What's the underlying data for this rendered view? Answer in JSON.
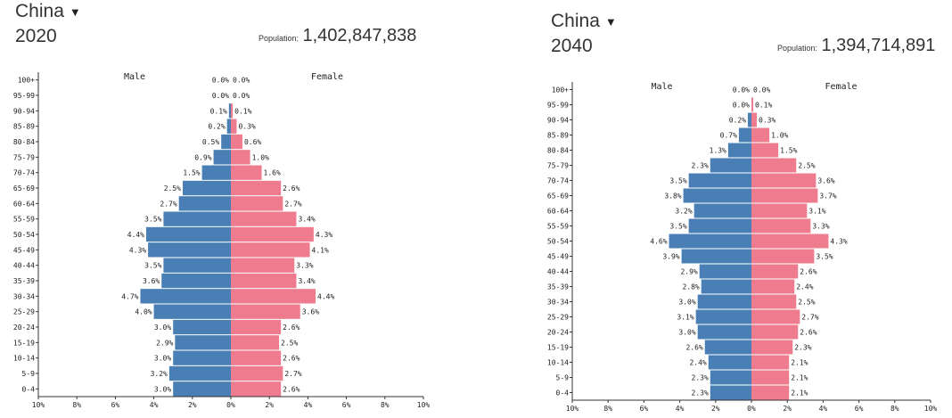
{
  "colors": {
    "male": "#4a7fb5",
    "female": "#ef7c8e"
  },
  "icons": {
    "dropdown": "caret-down-icon"
  },
  "charts": [
    {
      "country": "China",
      "year": "2020",
      "population_label": "Population:",
      "population": "1,402,847,838"
    },
    {
      "country": "China",
      "year": "2040",
      "population_label": "Population:",
      "population": "1,394,714,891"
    }
  ],
  "chart_data": [
    {
      "type": "bar",
      "orientation": "horizontal-pyramid",
      "categories": [
        "0-4",
        "5-9",
        "10-14",
        "15-19",
        "20-24",
        "25-29",
        "30-34",
        "35-39",
        "40-44",
        "45-49",
        "50-54",
        "55-59",
        "60-64",
        "65-69",
        "70-74",
        "75-79",
        "80-84",
        "85-89",
        "90-94",
        "95-99",
        "100+"
      ],
      "series": [
        {
          "name": "Male",
          "values": [
            3.0,
            3.2,
            3.0,
            2.9,
            3.0,
            4.0,
            4.7,
            3.6,
            3.5,
            4.3,
            4.4,
            3.5,
            2.7,
            2.5,
            1.5,
            0.9,
            0.5,
            0.2,
            0.1,
            0.0,
            0.0
          ],
          "labels": [
            "3.0%",
            "3.2%",
            "3.0%",
            "2.9%",
            "3.0%",
            "4.0%",
            "4.7%",
            "3.6%",
            "3.5%",
            "4.3%",
            "4.4%",
            "3.5%",
            "2.7%",
            "2.5%",
            "1.5%",
            "0.9%",
            "0.5%",
            "0.2%",
            "0.1%",
            "0.0%",
            "0.0%"
          ]
        },
        {
          "name": "Female",
          "values": [
            2.6,
            2.7,
            2.6,
            2.5,
            2.6,
            3.6,
            4.4,
            3.4,
            3.3,
            4.1,
            4.3,
            3.4,
            2.7,
            2.6,
            1.6,
            1.0,
            0.6,
            0.3,
            0.1,
            0.0,
            0.0
          ],
          "labels": [
            "2.6%",
            "2.7%",
            "2.6%",
            "2.5%",
            "2.6%",
            "3.6%",
            "4.4%",
            "3.4%",
            "3.3%",
            "4.1%",
            "4.3%",
            "3.4%",
            "2.7%",
            "2.6%",
            "1.6%",
            "1.0%",
            "0.6%",
            "0.3%",
            "0.1%",
            "0.0%",
            "0.0%"
          ]
        }
      ],
      "xlim": [
        -10,
        10
      ],
      "xticks": [
        "10%",
        "8%",
        "6%",
        "4%",
        "2%",
        "0%",
        "2%",
        "4%",
        "6%",
        "8%",
        "10%"
      ],
      "grid": false
    },
    {
      "type": "bar",
      "orientation": "horizontal-pyramid",
      "categories": [
        "0-4",
        "5-9",
        "10-14",
        "15-19",
        "20-24",
        "25-29",
        "30-34",
        "35-39",
        "40-44",
        "45-49",
        "50-54",
        "55-59",
        "60-64",
        "65-69",
        "70-74",
        "75-79",
        "80-84",
        "85-89",
        "90-94",
        "95-99",
        "100+"
      ],
      "series": [
        {
          "name": "Male",
          "values": [
            2.3,
            2.3,
            2.4,
            2.6,
            3.0,
            3.1,
            3.0,
            2.8,
            2.9,
            3.9,
            4.6,
            3.5,
            3.2,
            3.8,
            3.5,
            2.3,
            1.3,
            0.7,
            0.2,
            0.0,
            0.0
          ],
          "labels": [
            "2.3%",
            "2.3%",
            "2.4%",
            "2.6%",
            "3.0%",
            "3.1%",
            "3.0%",
            "2.8%",
            "2.9%",
            "3.9%",
            "4.6%",
            "3.5%",
            "3.2%",
            "3.8%",
            "3.5%",
            "2.3%",
            "1.3%",
            "0.7%",
            "0.2%",
            "0.0%",
            "0.0%"
          ]
        },
        {
          "name": "Female",
          "values": [
            2.1,
            2.1,
            2.1,
            2.3,
            2.6,
            2.7,
            2.5,
            2.4,
            2.6,
            3.5,
            4.3,
            3.3,
            3.1,
            3.7,
            3.6,
            2.5,
            1.5,
            1.0,
            0.3,
            0.1,
            0.0
          ],
          "labels": [
            "2.1%",
            "2.1%",
            "2.1%",
            "2.3%",
            "2.6%",
            "2.7%",
            "2.5%",
            "2.4%",
            "2.6%",
            "3.5%",
            "4.3%",
            "3.3%",
            "3.1%",
            "3.7%",
            "3.6%",
            "2.5%",
            "1.5%",
            "1.0%",
            "0.3%",
            "0.1%",
            "0.0%"
          ]
        }
      ],
      "xlim": [
        -10,
        10
      ],
      "xticks": [
        "10%",
        "8%",
        "6%",
        "4%",
        "2%",
        "0%",
        "2%",
        "4%",
        "6%",
        "8%",
        "10%"
      ],
      "grid": false
    }
  ]
}
